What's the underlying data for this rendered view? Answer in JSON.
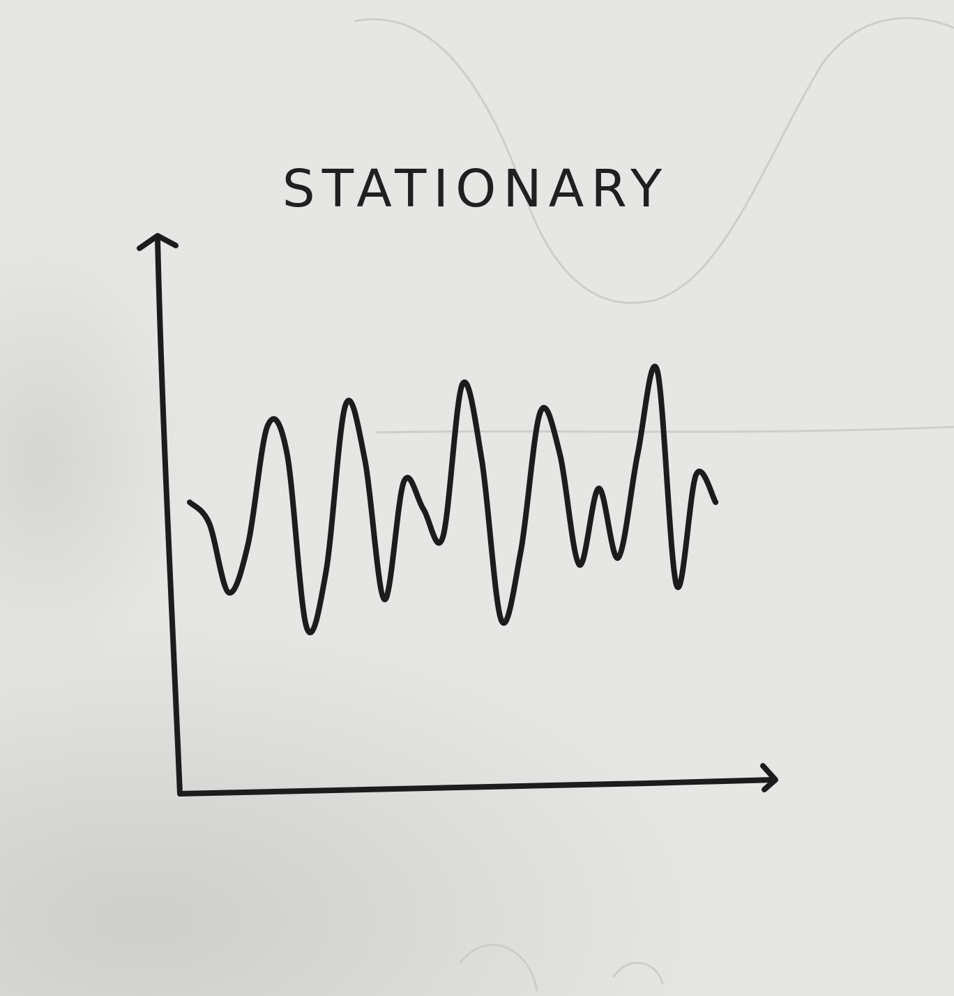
{
  "chart_data": {
    "type": "line",
    "title": "STATIONARY",
    "xlabel": "",
    "ylabel": "",
    "grid": false,
    "legend": "none",
    "x": [
      0,
      1,
      2,
      3,
      4,
      5,
      6,
      7,
      8,
      9,
      10,
      11,
      12,
      13,
      14,
      15,
      16,
      17,
      18,
      19,
      20,
      21,
      22,
      23,
      24,
      25,
      26,
      27
    ],
    "series": [
      {
        "values": [
          4.2,
          3.9,
          2.9,
          3.6,
          5.3,
          4.9,
          2.4,
          3.2,
          5.6,
          4.8,
          2.8,
          4.5,
          4.1,
          3.7,
          5.9,
          4.8,
          2.5,
          3.5,
          5.5,
          4.9,
          3.3,
          4.4,
          3.4,
          4.9,
          6.1,
          3.0,
          4.6,
          4.2
        ],
        "color": "#1c1c1c"
      }
    ],
    "xlim": [
      -0.5,
      30
    ],
    "ylim": [
      0,
      8
    ],
    "line_color": "#1c1c1c",
    "axis_color": "#1c1c1c",
    "paper_color": "#e6e6e4"
  }
}
